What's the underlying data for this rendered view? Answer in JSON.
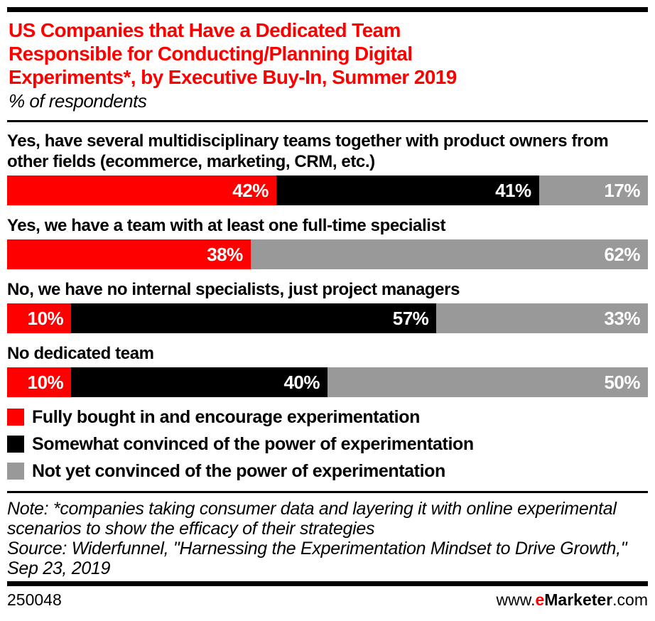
{
  "chart_data": {
    "type": "bar",
    "orientation": "horizontal",
    "stacked": true,
    "title": "US Companies that Have a Dedicated Team Responsible for Conducting/Planning Digital Experiments*, by Executive Buy-In, Summer 2019",
    "title_lines": [
      "US Companies that Have a Dedicated Team",
      "Responsible for Conducting/Planning Digital",
      "Experiments*, by Executive Buy-In, Summer 2019"
    ],
    "subtitle": "% of respondents",
    "unit": "%",
    "xlim": [
      0,
      100
    ],
    "grid": false,
    "legend_position": "bottom",
    "categories": [
      "Yes, have several multidisciplinary teams together with product owners from other fields (ecommerce, marketing, CRM, etc.)",
      "Yes, we have a team with at least one full-time specialist",
      "No, we have no internal specialists, just project managers",
      "No dedicated team"
    ],
    "series": [
      {
        "name": "Fully bought in and encourage experimentation",
        "color": "#ff0000",
        "values": [
          42,
          38,
          10,
          10
        ]
      },
      {
        "name": "Somewhat convinced of the power of experimentation",
        "color": "#000000",
        "values": [
          41,
          0,
          57,
          40
        ]
      },
      {
        "name": "Not yet convinced of the power of experimentation",
        "color": "#999999",
        "values": [
          17,
          62,
          33,
          50
        ]
      }
    ]
  },
  "notes": {
    "note": "Note: *companies taking consumer data and layering it with online experimental scenarios to show the efficacy of their strategies",
    "source": "Source: Widerfunnel, \"Harnessing the Experimentation Mindset to Drive Growth,\" Sep 23, 2019"
  },
  "footer": {
    "chart_id": "250048",
    "url_prefix": "www.",
    "brand_e": "e",
    "brand_rest": "Marketer",
    "url_suffix": ".com"
  },
  "colors": {
    "accent_red": "#ff0000",
    "black": "#000000",
    "gray": "#999999",
    "background": "#ffffff",
    "value_label_text": "#ffffff"
  }
}
